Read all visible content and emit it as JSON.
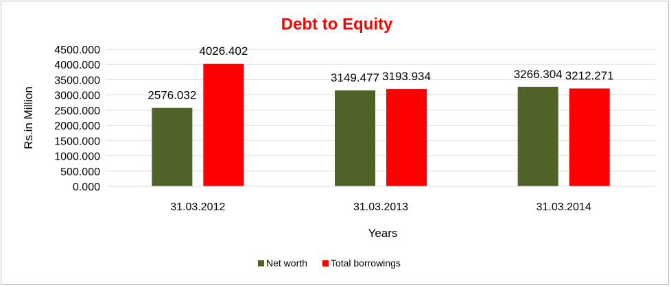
{
  "chart_data": {
    "type": "bar",
    "title": "Debt to Equity",
    "title_color": "#ff0000",
    "xlabel": "Years",
    "ylabel": "Rs.in Million",
    "categories": [
      "31.03.2012",
      "31.03.2013",
      "31.03.2014"
    ],
    "series": [
      {
        "name": "Net worth",
        "color": "#4f6228",
        "values": [
          2576.032,
          3149.477,
          3266.304
        ],
        "labels": [
          "2576.032",
          "3149.477",
          "3266.304"
        ]
      },
      {
        "name": "Total borrowings",
        "color": "#ff0000",
        "values": [
          4026.402,
          3193.934,
          3212.271
        ],
        "labels": [
          "4026.402",
          "3193.934",
          "3212.271"
        ]
      }
    ],
    "ylim": [
      0,
      4500
    ],
    "yticks": [
      0,
      500,
      1000,
      1500,
      2000,
      2500,
      3000,
      3500,
      4000,
      4500
    ],
    "ytick_labels": [
      "0.000",
      "500.000",
      "1000.000",
      "1500.000",
      "2000.000",
      "2500.000",
      "3000.000",
      "3500.000",
      "4000.000",
      "4500.000"
    ],
    "grid": true,
    "legend_position": "bottom"
  }
}
